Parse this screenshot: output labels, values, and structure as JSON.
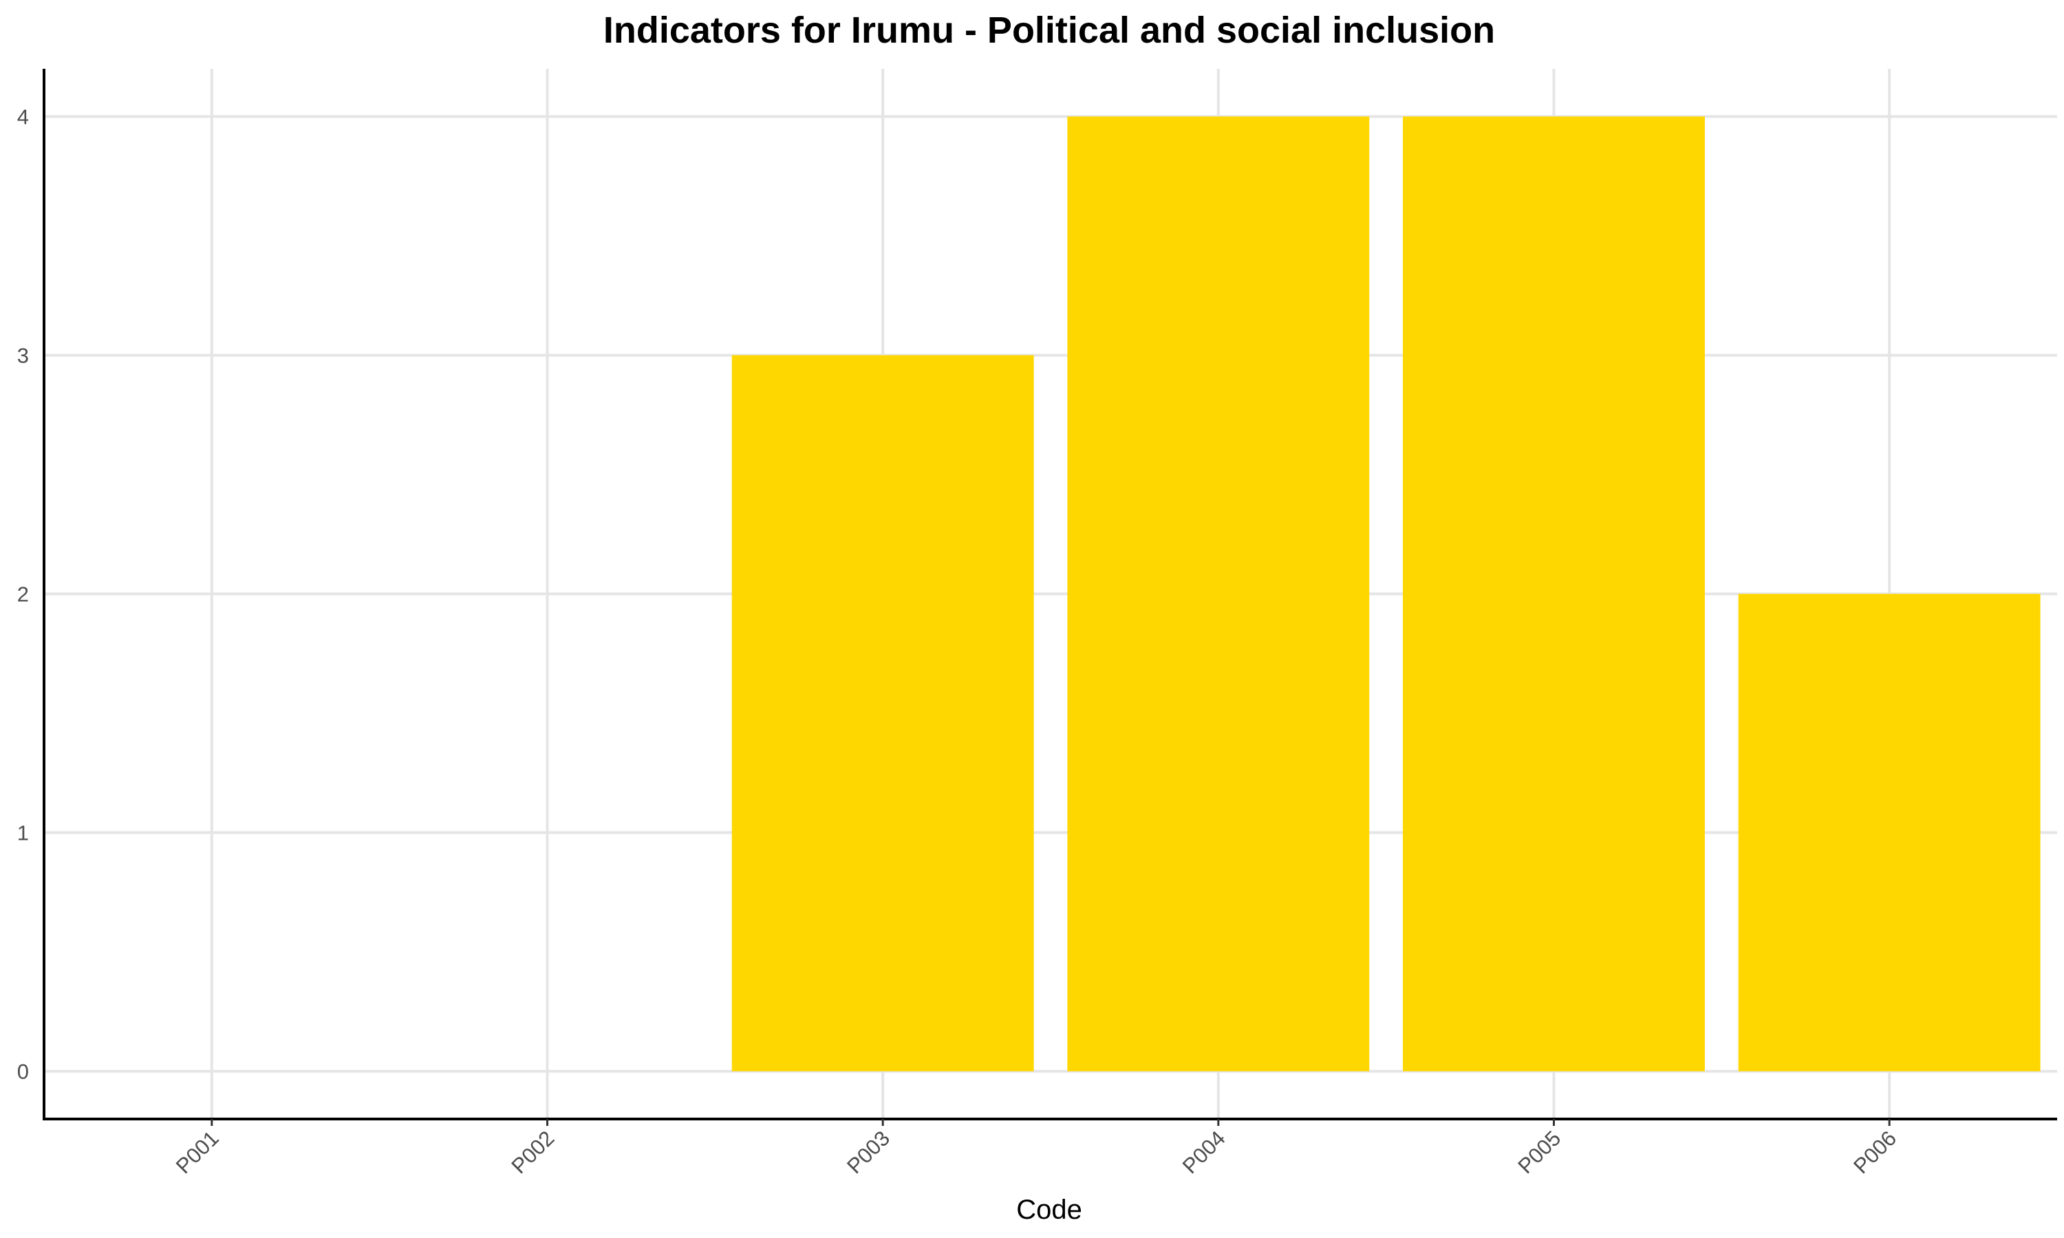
{
  "chart_data": {
    "type": "bar",
    "title": "Indicators for Irumu - Political and social inclusion",
    "xlabel": "Code",
    "ylabel": "",
    "categories": [
      "P001",
      "P002",
      "P003",
      "P004",
      "P005",
      "P006"
    ],
    "values": [
      0,
      0,
      3,
      4,
      4,
      2
    ],
    "ylim": [
      -0.2,
      4.2
    ],
    "yticks": [
      0,
      1,
      2,
      3,
      4
    ],
    "grid": true,
    "bar_color": "#FFD700"
  }
}
